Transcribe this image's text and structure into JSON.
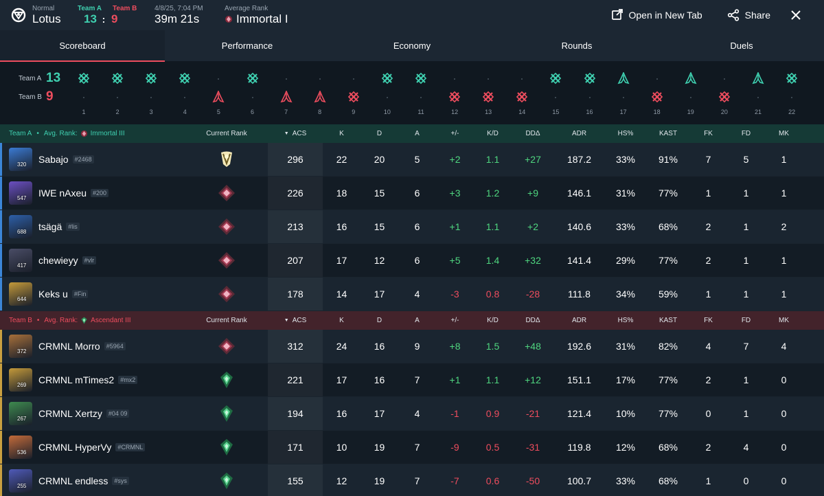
{
  "header": {
    "mode": "Normal",
    "map": "Lotus",
    "teamA_label": "Team A",
    "teamB_label": "Team B",
    "teamA_score": "13",
    "separator": ":",
    "teamB_score": "9",
    "datetime": "4/8/25, 7:04 PM",
    "duration": "39m 21s",
    "avg_rank_label": "Average Rank",
    "avg_rank": "Immortal I",
    "open_new_tab": "Open in New Tab",
    "share": "Share"
  },
  "tabs": [
    "Scoreboard",
    "Performance",
    "Economy",
    "Rounds",
    "Duels"
  ],
  "timeline": {
    "teamA_label": "Team A",
    "teamB_label": "Team B",
    "teamA_score": "13",
    "teamB_score": "9",
    "rounds": [
      {
        "n": "1",
        "winner": "A",
        "type": "elim"
      },
      {
        "n": "2",
        "winner": "A",
        "type": "elim"
      },
      {
        "n": "3",
        "winner": "A",
        "type": "elim"
      },
      {
        "n": "4",
        "winner": "A",
        "type": "elim"
      },
      {
        "n": "5",
        "winner": "B",
        "type": "spike"
      },
      {
        "n": "6",
        "winner": "A",
        "type": "elim"
      },
      {
        "n": "7",
        "winner": "B",
        "type": "spike"
      },
      {
        "n": "8",
        "winner": "B",
        "type": "spike"
      },
      {
        "n": "9",
        "winner": "B",
        "type": "elim"
      },
      {
        "n": "10",
        "winner": "A",
        "type": "elim"
      },
      {
        "n": "11",
        "winner": "A",
        "type": "elim"
      },
      {
        "n": "12",
        "winner": "B",
        "type": "elim"
      },
      {
        "n": "13",
        "winner": "B",
        "type": "elim"
      },
      {
        "n": "14",
        "winner": "B",
        "type": "elim"
      },
      {
        "n": "15",
        "winner": "A",
        "type": "elim"
      },
      {
        "n": "16",
        "winner": "A",
        "type": "elim"
      },
      {
        "n": "17",
        "winner": "A",
        "type": "spike"
      },
      {
        "n": "18",
        "winner": "B",
        "type": "elim"
      },
      {
        "n": "19",
        "winner": "A",
        "type": "spike"
      },
      {
        "n": "20",
        "winner": "B",
        "type": "elim"
      },
      {
        "n": "21",
        "winner": "A",
        "type": "spike"
      },
      {
        "n": "22",
        "winner": "A",
        "type": "elim"
      }
    ]
  },
  "columns": {
    "current_rank": "Current Rank",
    "acs": "ACS",
    "k": "K",
    "d": "D",
    "a": "A",
    "pm": "+/-",
    "kd": "K/D",
    "dd": "DDΔ",
    "adr": "ADR",
    "hs": "HS%",
    "kast": "KAST",
    "fk": "FK",
    "fd": "FD",
    "mk": "MK"
  },
  "teamA": {
    "label": "Team A",
    "bullet": "•",
    "avg_rank_label": "Avg. Rank:",
    "avg_rank": "Immortal III",
    "players": [
      {
        "name": "Sabajo",
        "tag": "#2468",
        "level": "320",
        "rank_icon": "radiant-icon",
        "acs": "296",
        "k": "22",
        "d": "20",
        "a": "5",
        "pm": "+2",
        "kd": "1.1",
        "dd": "+27",
        "adr": "187.2",
        "hs": "33%",
        "kast": "91%",
        "fk": "7",
        "fd": "5",
        "mk": "1",
        "color": "#3b7bd4"
      },
      {
        "name": "IWE nAxeu",
        "tag": "#200",
        "level": "547",
        "rank_icon": "immortal-icon",
        "acs": "226",
        "k": "18",
        "d": "15",
        "a": "6",
        "pm": "+3",
        "kd": "1.2",
        "dd": "+9",
        "adr": "146.1",
        "hs": "31%",
        "kast": "77%",
        "fk": "1",
        "fd": "1",
        "mk": "1",
        "color": "#6b4fc2"
      },
      {
        "name": "tsägä",
        "tag": "#lis",
        "level": "688",
        "rank_icon": "immortal-icon",
        "acs": "213",
        "k": "16",
        "d": "15",
        "a": "6",
        "pm": "+1",
        "kd": "1.1",
        "dd": "+2",
        "adr": "140.6",
        "hs": "33%",
        "kast": "68%",
        "fk": "2",
        "fd": "1",
        "mk": "2",
        "color": "#2d5fa8"
      },
      {
        "name": "chewieyy",
        "tag": "#vlr",
        "level": "417",
        "rank_icon": "immortal-icon",
        "acs": "207",
        "k": "17",
        "d": "12",
        "a": "6",
        "pm": "+5",
        "kd": "1.4",
        "dd": "+32",
        "adr": "141.4",
        "hs": "29%",
        "kast": "77%",
        "fk": "2",
        "fd": "1",
        "mk": "1",
        "color": "#4a4d66"
      },
      {
        "name": "Keks u",
        "tag": "#Fin",
        "level": "644",
        "rank_icon": "immortal-icon",
        "acs": "178",
        "k": "14",
        "d": "17",
        "a": "4",
        "pm": "-3",
        "kd": "0.8",
        "dd": "-28",
        "adr": "111.8",
        "hs": "34%",
        "kast": "59%",
        "fk": "1",
        "fd": "1",
        "mk": "1",
        "color": "#c49a3a"
      }
    ]
  },
  "teamB": {
    "label": "Team B",
    "bullet": "•",
    "avg_rank_label": "Avg. Rank:",
    "avg_rank": "Ascendant III",
    "players": [
      {
        "name": "CRMNL Morro",
        "tag": "#5964",
        "level": "372",
        "rank_icon": "immortal-icon",
        "acs": "312",
        "k": "24",
        "d": "16",
        "a": "9",
        "pm": "+8",
        "kd": "1.5",
        "dd": "+48",
        "adr": "192.6",
        "hs": "31%",
        "kast": "82%",
        "fk": "4",
        "fd": "7",
        "mk": "4",
        "color": "#a8703a"
      },
      {
        "name": "CRMNL mTimes2",
        "tag": "#mx2",
        "level": "269",
        "rank_icon": "ascendant-icon",
        "acs": "221",
        "k": "17",
        "d": "16",
        "a": "7",
        "pm": "+1",
        "kd": "1.1",
        "dd": "+12",
        "adr": "151.1",
        "hs": "17%",
        "kast": "77%",
        "fk": "2",
        "fd": "1",
        "mk": "0",
        "color": "#c49a3a"
      },
      {
        "name": "CRMNL Xertzy",
        "tag": "#04 09",
        "level": "267",
        "rank_icon": "ascendant-icon",
        "acs": "194",
        "k": "16",
        "d": "17",
        "a": "4",
        "pm": "-1",
        "kd": "0.9",
        "dd": "-21",
        "adr": "121.4",
        "hs": "10%",
        "kast": "77%",
        "fk": "0",
        "fd": "1",
        "mk": "0",
        "color": "#3e8a4f"
      },
      {
        "name": "CRMNL HyperVy",
        "tag": "#CRMNL",
        "level": "536",
        "rank_icon": "ascendant-icon",
        "acs": "171",
        "k": "10",
        "d": "19",
        "a": "7",
        "pm": "-9",
        "kd": "0.5",
        "dd": "-31",
        "adr": "119.8",
        "hs": "12%",
        "kast": "68%",
        "fk": "2",
        "fd": "4",
        "mk": "0",
        "color": "#c46b3a"
      },
      {
        "name": "CRMNL endless",
        "tag": "#sys",
        "level": "255",
        "rank_icon": "ascendant-icon",
        "acs": "155",
        "k": "12",
        "d": "19",
        "a": "7",
        "pm": "-7",
        "kd": "0.6",
        "dd": "-50",
        "adr": "100.7",
        "hs": "33%",
        "kast": "68%",
        "fk": "1",
        "fd": "0",
        "mk": "0",
        "color": "#4f5ab8"
      }
    ]
  },
  "colors": {
    "teamA": "#3fd0b0",
    "teamB": "#ee4d5e",
    "positive": "#4fd67f",
    "negative": "#ee4d5e",
    "accent": "#ee4d5e"
  }
}
